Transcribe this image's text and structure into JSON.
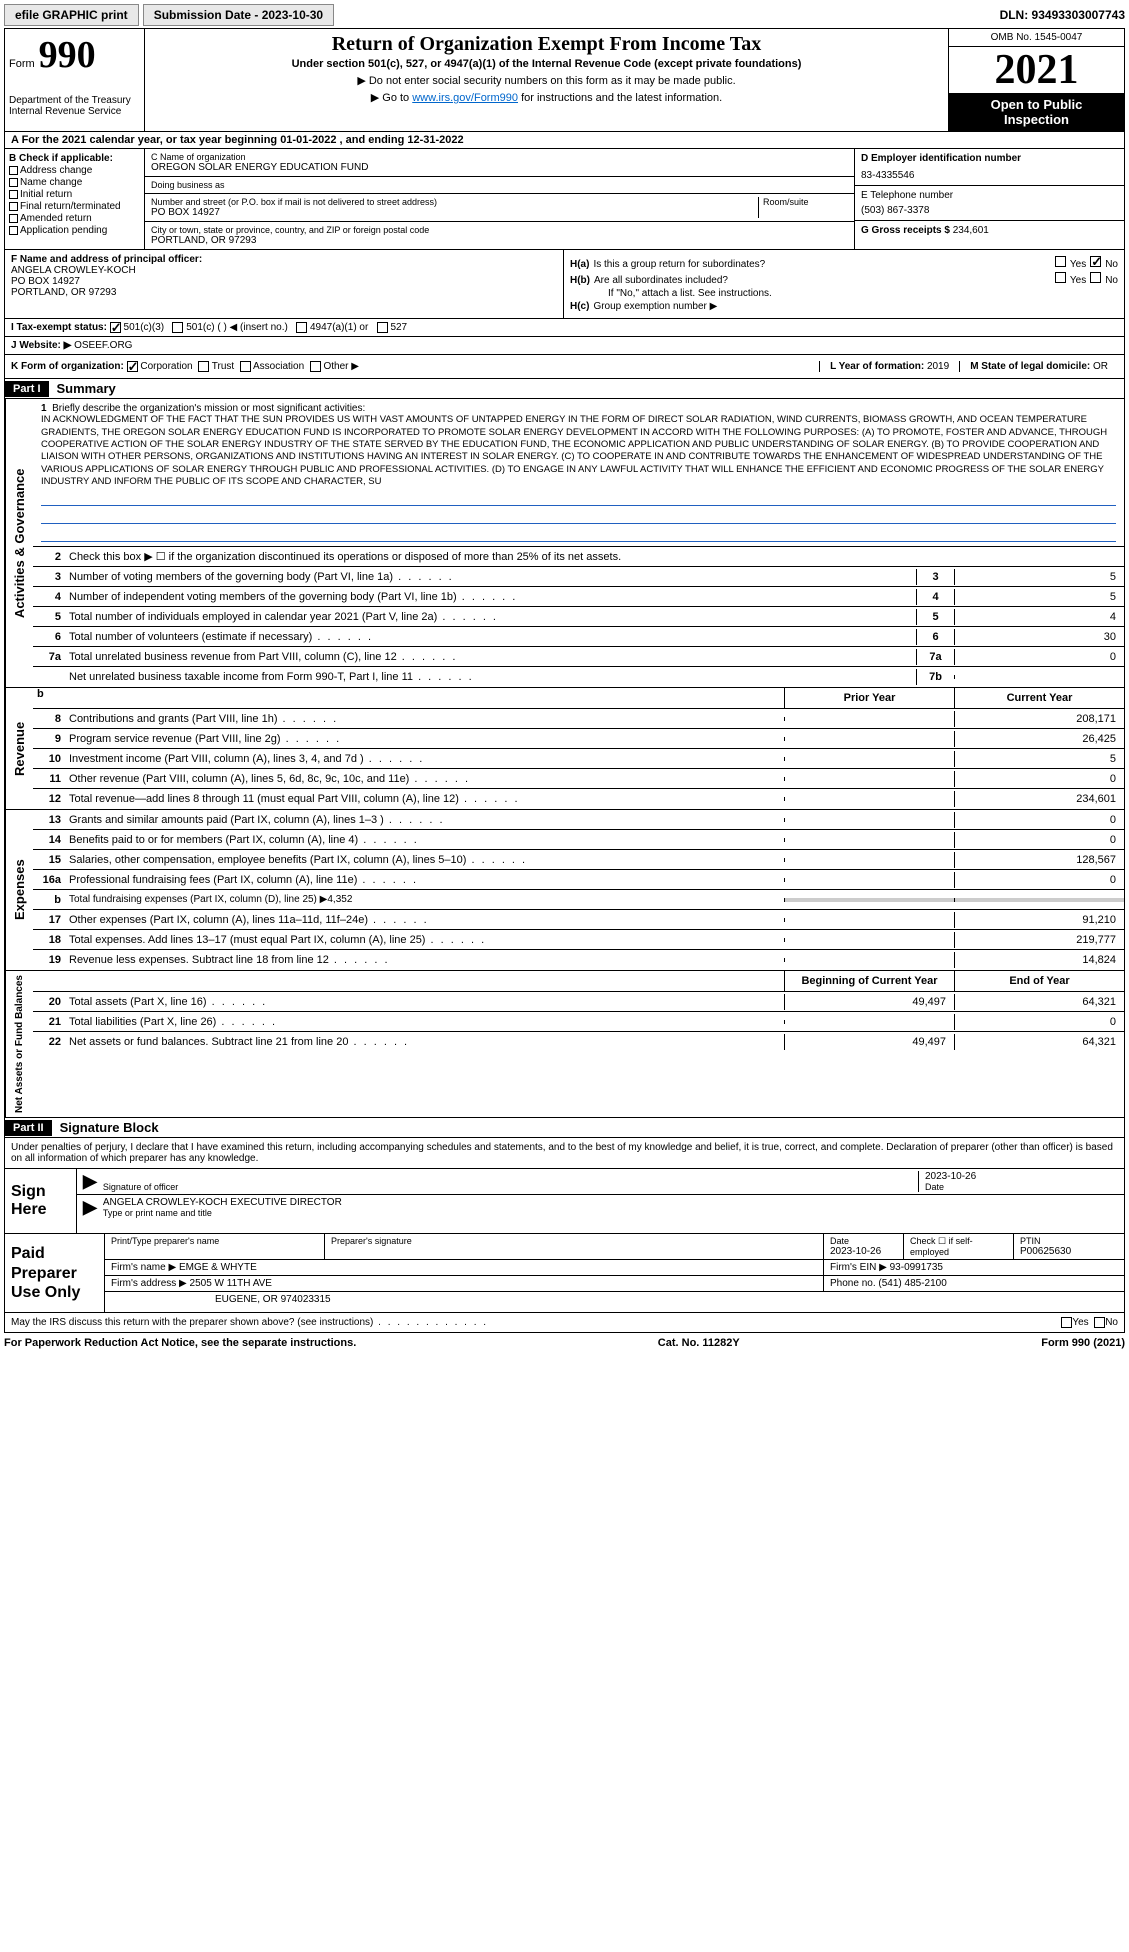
{
  "top": {
    "efile": "efile GRAPHIC print",
    "submission": "Submission Date - 2023-10-30",
    "dln": "DLN: 93493303007743"
  },
  "header": {
    "form_word": "Form",
    "form_num": "990",
    "dept": "Department of the Treasury Internal Revenue Service",
    "title": "Return of Organization Exempt From Income Tax",
    "subtitle": "Under section 501(c), 527, or 4947(a)(1) of the Internal Revenue Code (except private foundations)",
    "line1": "▶ Do not enter social security numbers on this form as it may be made public.",
    "line2_pre": "▶ Go to ",
    "line2_link": "www.irs.gov/Form990",
    "line2_post": " for instructions and the latest information.",
    "omb": "OMB No. 1545-0047",
    "year": "2021",
    "open1": "Open to Public",
    "open2": "Inspection"
  },
  "calendar": "A For the 2021 calendar year, or tax year beginning 01-01-2022   , and ending 12-31-2022",
  "box_b": {
    "hdr": "B Check if applicable:",
    "opts": [
      "Address change",
      "Name change",
      "Initial return",
      "Final return/terminated",
      "Amended return",
      "Application pending"
    ]
  },
  "box_c": {
    "name_lbl": "C Name of organization",
    "name": "OREGON SOLAR ENERGY EDUCATION FUND",
    "dba_lbl": "Doing business as",
    "addr_lbl": "Number and street (or P.O. box if mail is not delivered to street address)",
    "addr": "PO BOX 14927",
    "room_lbl": "Room/suite",
    "city_lbl": "City or town, state or province, country, and ZIP or foreign postal code",
    "city": "PORTLAND, OR  97293"
  },
  "box_d": {
    "lbl": "D Employer identification number",
    "val": "83-4335546"
  },
  "box_e": {
    "lbl": "E Telephone number",
    "val": "(503) 867-3378"
  },
  "box_g": {
    "lbl": "G Gross receipts $",
    "val": "234,601"
  },
  "box_f": {
    "lbl": "F  Name and address of principal officer:",
    "name": "ANGELA CROWLEY-KOCH",
    "addr1": "PO BOX 14927",
    "addr2": "PORTLAND, OR  97293"
  },
  "box_h": {
    "ha_lbl": "Is this a group return for subordinates?",
    "hb_lbl": "Are all subordinates included?",
    "hc_lbl": "Group exemption number ▶",
    "note": "If \"No,\" attach a list. See instructions.",
    "ha_tag": "H(a)",
    "hb_tag": "H(b)",
    "hc_tag": "H(c)",
    "yes": "Yes",
    "no": "No"
  },
  "box_i": {
    "lbl": "I   Tax-exempt status:",
    "o1": "501(c)(3)",
    "o2": "501(c) (  ) ◀ (insert no.)",
    "o3": "4947(a)(1) or",
    "o4": "527"
  },
  "box_j": {
    "lbl": "J  Website: ▶",
    "val": "OSEEF.ORG"
  },
  "box_k": {
    "lbl": "K Form of organization:",
    "o1": "Corporation",
    "o2": "Trust",
    "o3": "Association",
    "o4": "Other ▶"
  },
  "box_l": {
    "lbl": "L Year of formation:",
    "val": "2019"
  },
  "box_m": {
    "lbl": "M State of legal domicile:",
    "val": "OR"
  },
  "part1": {
    "tag": "Part I",
    "title": "Summary"
  },
  "side": {
    "ag": "Activities & Governance",
    "rev": "Revenue",
    "exp": "Expenses",
    "na": "Net Assets or Fund Balances"
  },
  "mission": {
    "lbl": "Briefly describe the organization's mission or most significant activities:",
    "text": "IN ACKNOWLEDGMENT OF THE FACT THAT THE SUN PROVIDES US WITH VAST AMOUNTS OF UNTAPPED ENERGY IN THE FORM OF DIRECT SOLAR RADIATION, WIND CURRENTS, BIOMASS GROWTH, AND OCEAN TEMPERATURE GRADIENTS, THE OREGON SOLAR ENERGY EDUCATION FUND IS INCORPORATED TO PROMOTE SOLAR ENERGY DEVELOPMENT IN ACCORD WITH THE FOLLOWING PURPOSES: (A) TO PROMOTE, FOSTER AND ADVANCE, THROUGH COOPERATIVE ACTION OF THE SOLAR ENERGY INDUSTRY OF THE STATE SERVED BY THE EDUCATION FUND, THE ECONOMIC APPLICATION AND PUBLIC UNDERSTANDING OF SOLAR ENERGY. (B) TO PROVIDE COOPERATION AND LIAISON WITH OTHER PERSONS, ORGANIZATIONS AND INSTITUTIONS HAVING AN INTEREST IN SOLAR ENERGY. (C) TO COOPERATE IN AND CONTRIBUTE TOWARDS THE ENHANCEMENT OF WIDESPREAD UNDERSTANDING OF THE VARIOUS APPLICATIONS OF SOLAR ENERGY THROUGH PUBLIC AND PROFESSIONAL ACTIVITIES. (D) TO ENGAGE IN ANY LAWFUL ACTIVITY THAT WILL ENHANCE THE EFFICIENT AND ECONOMIC PROGRESS OF THE SOLAR ENERGY INDUSTRY AND INFORM THE PUBLIC OF ITS SCOPE AND CHARACTER, SU"
  },
  "lines_ag": [
    {
      "n": "2",
      "d": "Check this box ▶ ☐ if the organization discontinued its operations or disposed of more than 25% of its net assets."
    },
    {
      "n": "3",
      "d": "Number of voting members of the governing body (Part VI, line 1a)",
      "box": "3",
      "v": "5"
    },
    {
      "n": "4",
      "d": "Number of independent voting members of the governing body (Part VI, line 1b)",
      "box": "4",
      "v": "5"
    },
    {
      "n": "5",
      "d": "Total number of individuals employed in calendar year 2021 (Part V, line 2a)",
      "box": "5",
      "v": "4"
    },
    {
      "n": "6",
      "d": "Total number of volunteers (estimate if necessary)",
      "box": "6",
      "v": "30"
    },
    {
      "n": "7a",
      "d": "Total unrelated business revenue from Part VIII, column (C), line 12",
      "box": "7a",
      "v": "0"
    },
    {
      "n": "",
      "d": "Net unrelated business taxable income from Form 990-T, Part I, line 11",
      "box": "7b",
      "v": ""
    }
  ],
  "cols": {
    "prior": "Prior Year",
    "current": "Current Year",
    "boc": "Beginning of Current Year",
    "eoy": "End of Year"
  },
  "lines_rev": [
    {
      "n": "8",
      "d": "Contributions and grants (Part VIII, line 1h)",
      "p": "",
      "c": "208,171"
    },
    {
      "n": "9",
      "d": "Program service revenue (Part VIII, line 2g)",
      "p": "",
      "c": "26,425"
    },
    {
      "n": "10",
      "d": "Investment income (Part VIII, column (A), lines 3, 4, and 7d )",
      "p": "",
      "c": "5"
    },
    {
      "n": "11",
      "d": "Other revenue (Part VIII, column (A), lines 5, 6d, 8c, 9c, 10c, and 11e)",
      "p": "",
      "c": "0"
    },
    {
      "n": "12",
      "d": "Total revenue—add lines 8 through 11 (must equal Part VIII, column (A), line 12)",
      "p": "",
      "c": "234,601"
    }
  ],
  "lines_exp": [
    {
      "n": "13",
      "d": "Grants and similar amounts paid (Part IX, column (A), lines 1–3 )",
      "p": "",
      "c": "0"
    },
    {
      "n": "14",
      "d": "Benefits paid to or for members (Part IX, column (A), line 4)",
      "p": "",
      "c": "0"
    },
    {
      "n": "15",
      "d": "Salaries, other compensation, employee benefits (Part IX, column (A), lines 5–10)",
      "p": "",
      "c": "128,567"
    },
    {
      "n": "16a",
      "d": "Professional fundraising fees (Part IX, column (A), line 11e)",
      "p": "",
      "c": "0"
    },
    {
      "n": "b",
      "d": "Total fundraising expenses (Part IX, column (D), line 25) ▶4,352",
      "gray": true
    },
    {
      "n": "17",
      "d": "Other expenses (Part IX, column (A), lines 11a–11d, 11f–24e)",
      "p": "",
      "c": "91,210"
    },
    {
      "n": "18",
      "d": "Total expenses. Add lines 13–17 (must equal Part IX, column (A), line 25)",
      "p": "",
      "c": "219,777"
    },
    {
      "n": "19",
      "d": "Revenue less expenses. Subtract line 18 from line 12",
      "p": "",
      "c": "14,824"
    }
  ],
  "lines_na": [
    {
      "n": "20",
      "d": "Total assets (Part X, line 16)",
      "p": "49,497",
      "c": "64,321"
    },
    {
      "n": "21",
      "d": "Total liabilities (Part X, line 26)",
      "p": "",
      "c": "0"
    },
    {
      "n": "22",
      "d": "Net assets or fund balances. Subtract line 21 from line 20",
      "p": "49,497",
      "c": "64,321"
    }
  ],
  "part2": {
    "tag": "Part II",
    "title": "Signature Block"
  },
  "sig": {
    "decl": "Under penalties of perjury, I declare that I have examined this return, including accompanying schedules and statements, and to the best of my knowledge and belief, it is true, correct, and complete. Declaration of preparer (other than officer) is based on all information of which preparer has any knowledge.",
    "sign": "Sign Here",
    "sig_of": "Signature of officer",
    "date": "Date",
    "date_val": "2023-10-26",
    "name": "ANGELA CROWLEY-KOCH  EXECUTIVE DIRECTOR",
    "name_lbl": "Type or print name and title"
  },
  "prep": {
    "lbl": "Paid Preparer Use Only",
    "h1": "Print/Type preparer's name",
    "h2": "Preparer's signature",
    "h3": "Date",
    "h4": "Check ☐ if self-employed",
    "h5": "PTIN",
    "date": "2023-10-26",
    "ptin": "P00625630",
    "firm_lbl": "Firm's name    ▶",
    "firm": "EMGE & WHYTE",
    "ein_lbl": "Firm's EIN ▶",
    "ein": "93-0991735",
    "addr_lbl": "Firm's address ▶",
    "addr1": "2505 W 11TH AVE",
    "addr2": "EUGENE, OR  974023315",
    "phone_lbl": "Phone no.",
    "phone": "(541) 485-2100"
  },
  "discuss": {
    "q": "May the IRS discuss this return with the preparer shown above? (see instructions)",
    "yes": "Yes",
    "no": "No"
  },
  "footer": {
    "left": "For Paperwork Reduction Act Notice, see the separate instructions.",
    "mid": "Cat. No. 11282Y",
    "right": "Form 990 (2021)"
  }
}
